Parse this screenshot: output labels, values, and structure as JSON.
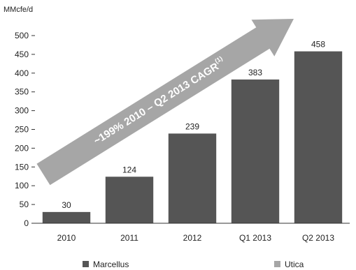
{
  "chart_data": {
    "type": "bar",
    "ylabel": "MMcfe/d",
    "ylim": [
      0,
      500
    ],
    "yticks": [
      0,
      50,
      100,
      150,
      200,
      250,
      300,
      350,
      400,
      450,
      500
    ],
    "categories": [
      "2010",
      "2011",
      "2012",
      "Q1 2013",
      "Q2 2013"
    ],
    "values": [
      30,
      124,
      239,
      383,
      458
    ],
    "grid": false,
    "annotation": {
      "text": "~199% 2010 – Q2 2013 CAGR",
      "superscript": "(1)"
    },
    "legend": {
      "placement": "bottom",
      "entries": [
        {
          "label": "Marcellus",
          "color": "#555555"
        },
        {
          "label": "Utica",
          "color": "#a6a6a6"
        }
      ]
    }
  },
  "colors": {
    "bar": "#555555",
    "arrow": "#a6a6a6",
    "axis": "#333333"
  }
}
